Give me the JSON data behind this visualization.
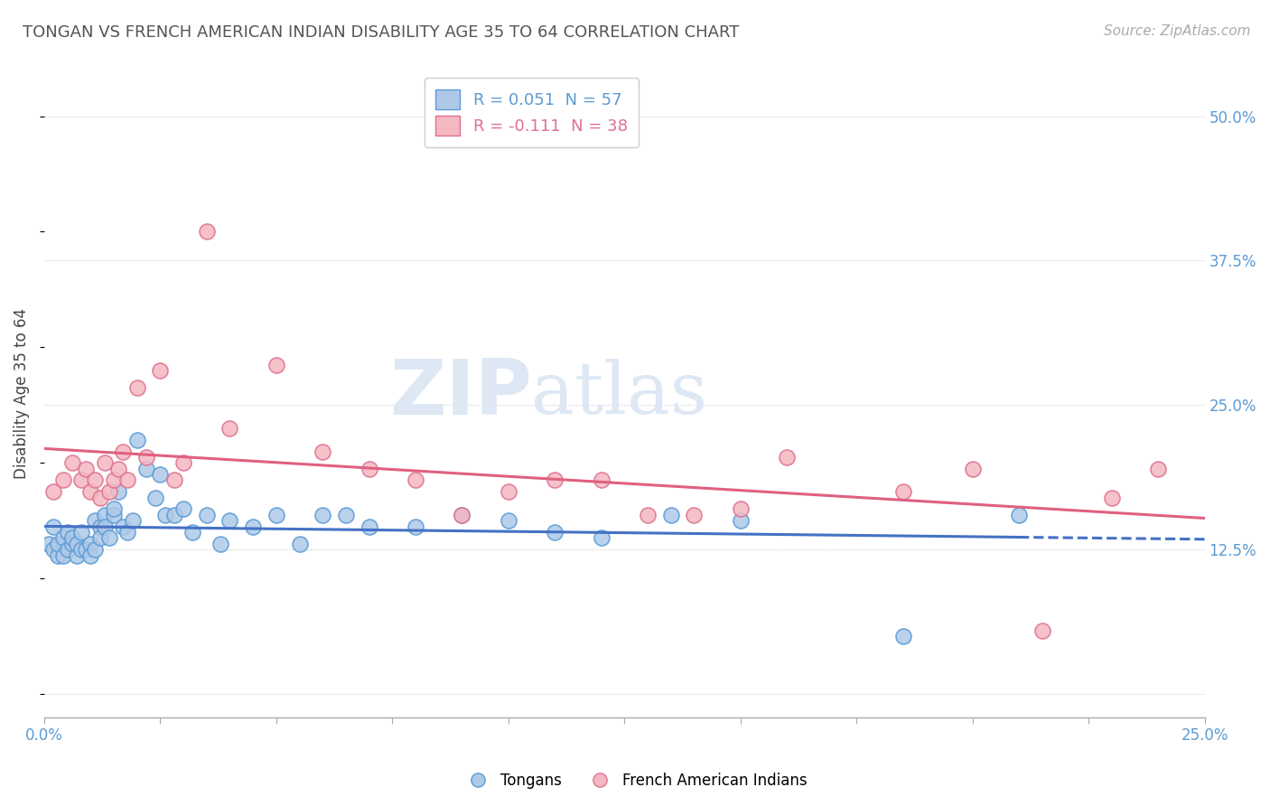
{
  "title": "TONGAN VS FRENCH AMERICAN INDIAN DISABILITY AGE 35 TO 64 CORRELATION CHART",
  "source": "Source: ZipAtlas.com",
  "ylabel": "Disability Age 35 to 64",
  "xlim": [
    0.0,
    0.25
  ],
  "ylim": [
    -0.02,
    0.54
  ],
  "xticks": [
    0.0,
    0.025,
    0.05,
    0.075,
    0.1,
    0.125,
    0.15,
    0.175,
    0.2,
    0.225,
    0.25
  ],
  "ytick_positions": [
    0.0,
    0.125,
    0.25,
    0.375,
    0.5
  ],
  "ytick_labels": [
    "",
    "12.5%",
    "25.0%",
    "37.5%",
    "50.0%"
  ],
  "tongans_R": 0.051,
  "french_R": -0.111,
  "blue_face": "#aec9e8",
  "blue_edge": "#5b9bd5",
  "pink_face": "#f4b8c1",
  "pink_edge": "#e07090",
  "blue_line": "#4472c4",
  "pink_line": "#e06080",
  "tongans_x": [
    0.001,
    0.002,
    0.002,
    0.003,
    0.003,
    0.004,
    0.004,
    0.005,
    0.005,
    0.006,
    0.006,
    0.007,
    0.007,
    0.008,
    0.008,
    0.009,
    0.01,
    0.01,
    0.011,
    0.011,
    0.012,
    0.012,
    0.013,
    0.013,
    0.014,
    0.015,
    0.015,
    0.016,
    0.017,
    0.018,
    0.019,
    0.02,
    0.022,
    0.024,
    0.025,
    0.026,
    0.028,
    0.03,
    0.032,
    0.035,
    0.038,
    0.04,
    0.045,
    0.05,
    0.055,
    0.06,
    0.065,
    0.07,
    0.08,
    0.09,
    0.1,
    0.11,
    0.12,
    0.135,
    0.15,
    0.185,
    0.21
  ],
  "tongans_y": [
    0.13,
    0.145,
    0.125,
    0.12,
    0.13,
    0.135,
    0.12,
    0.14,
    0.125,
    0.13,
    0.135,
    0.12,
    0.13,
    0.125,
    0.14,
    0.125,
    0.13,
    0.12,
    0.15,
    0.125,
    0.145,
    0.135,
    0.155,
    0.145,
    0.135,
    0.155,
    0.16,
    0.175,
    0.145,
    0.14,
    0.15,
    0.22,
    0.195,
    0.17,
    0.19,
    0.155,
    0.155,
    0.16,
    0.14,
    0.155,
    0.13,
    0.15,
    0.145,
    0.155,
    0.13,
    0.155,
    0.155,
    0.145,
    0.145,
    0.155,
    0.15,
    0.14,
    0.135,
    0.155,
    0.15,
    0.05,
    0.155
  ],
  "french_x": [
    0.002,
    0.004,
    0.006,
    0.008,
    0.009,
    0.01,
    0.011,
    0.012,
    0.013,
    0.014,
    0.015,
    0.016,
    0.017,
    0.018,
    0.02,
    0.022,
    0.025,
    0.028,
    0.03,
    0.035,
    0.04,
    0.05,
    0.06,
    0.07,
    0.08,
    0.09,
    0.1,
    0.11,
    0.12,
    0.13,
    0.14,
    0.15,
    0.16,
    0.185,
    0.2,
    0.215,
    0.23,
    0.24
  ],
  "french_y": [
    0.175,
    0.185,
    0.2,
    0.185,
    0.195,
    0.175,
    0.185,
    0.17,
    0.2,
    0.175,
    0.185,
    0.195,
    0.21,
    0.185,
    0.265,
    0.205,
    0.28,
    0.185,
    0.2,
    0.4,
    0.23,
    0.285,
    0.21,
    0.195,
    0.185,
    0.155,
    0.175,
    0.185,
    0.185,
    0.155,
    0.155,
    0.16,
    0.205,
    0.175,
    0.195,
    0.055,
    0.17,
    0.195
  ]
}
